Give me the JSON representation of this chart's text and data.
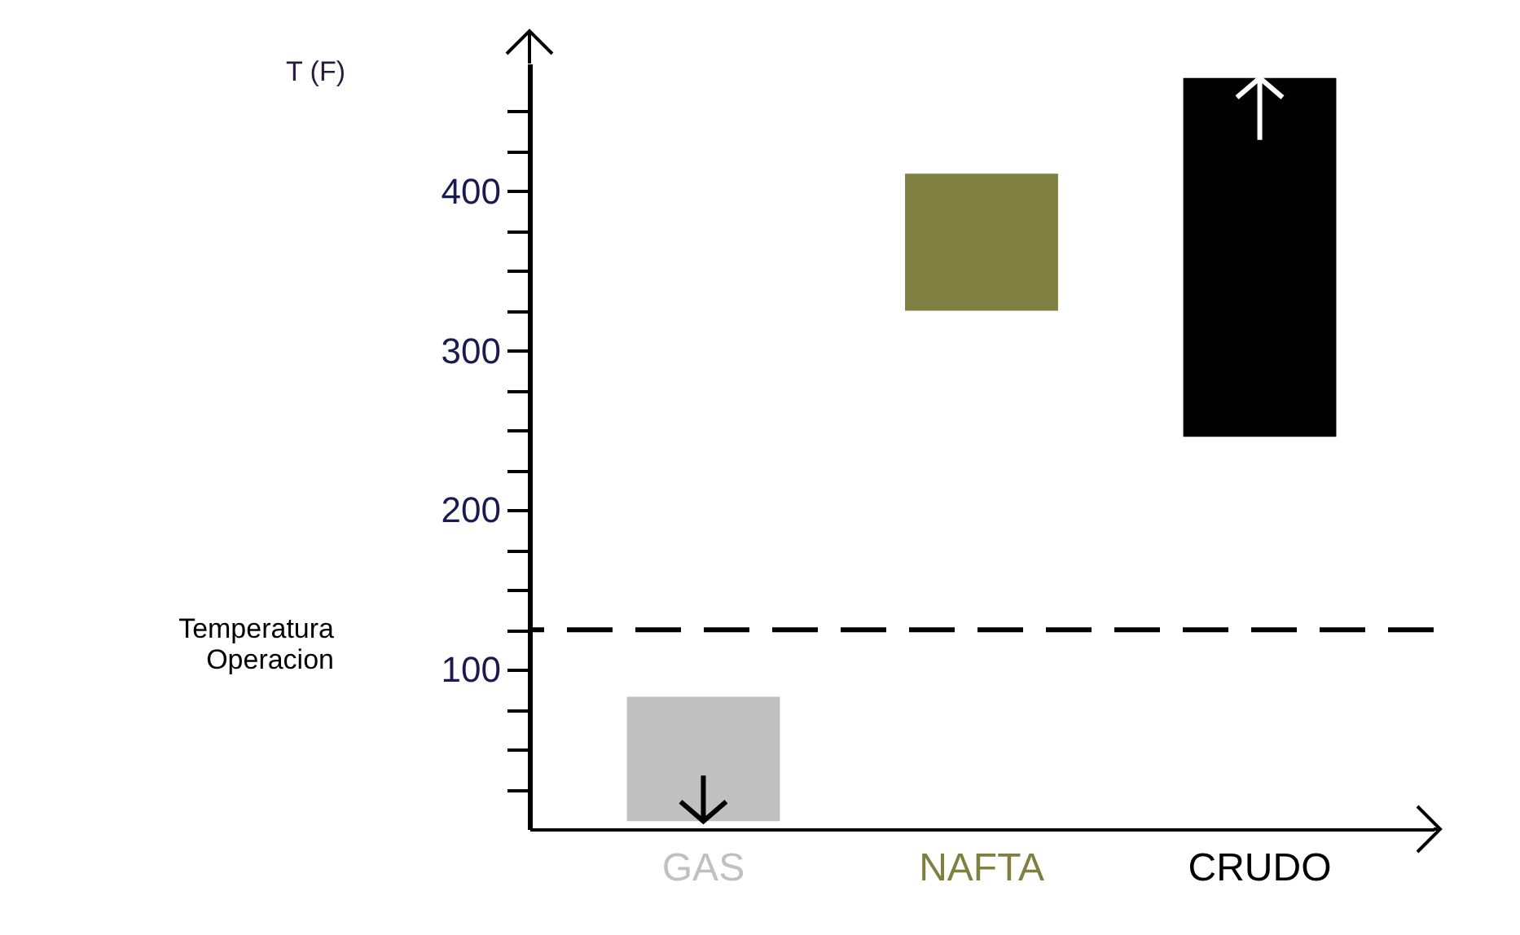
{
  "chart_data": {
    "type": "bar",
    "ylabel": "T (F)",
    "categories": [
      "GAS",
      "NAFTA",
      "CRUDO"
    ],
    "base": [
      5,
      325,
      246
    ],
    "values": [
      78,
      86,
      225
    ],
    "colors": [
      "#c0c0c0",
      "#7f7f42",
      "#000000"
    ],
    "ylim": [
      0,
      480
    ],
    "yticks": [
      {
        "value": 25,
        "label": null
      },
      {
        "value": 50,
        "label": null
      },
      {
        "value": 75,
        "label": null
      },
      100,
      {
        "value": 125,
        "label": null
      },
      {
        "value": 150,
        "label": null
      },
      {
        "value": 175,
        "label": null
      },
      200,
      {
        "value": 225,
        "label": null
      },
      {
        "value": 250,
        "label": null
      },
      {
        "value": 275,
        "label": null
      },
      300,
      {
        "value": 325,
        "label": null
      },
      {
        "value": 350,
        "label": null
      },
      {
        "value": 375,
        "label": null
      },
      400,
      {
        "value": 425,
        "label": null
      },
      {
        "value": 450,
        "label": null
      }
    ],
    "ref_lines": [
      {
        "axis": "y",
        "value": 125,
        "label": "Temperatura Operacion",
        "color": "#000000",
        "line_style": "dashed"
      }
    ],
    "grid": false,
    "legend": false
  }
}
